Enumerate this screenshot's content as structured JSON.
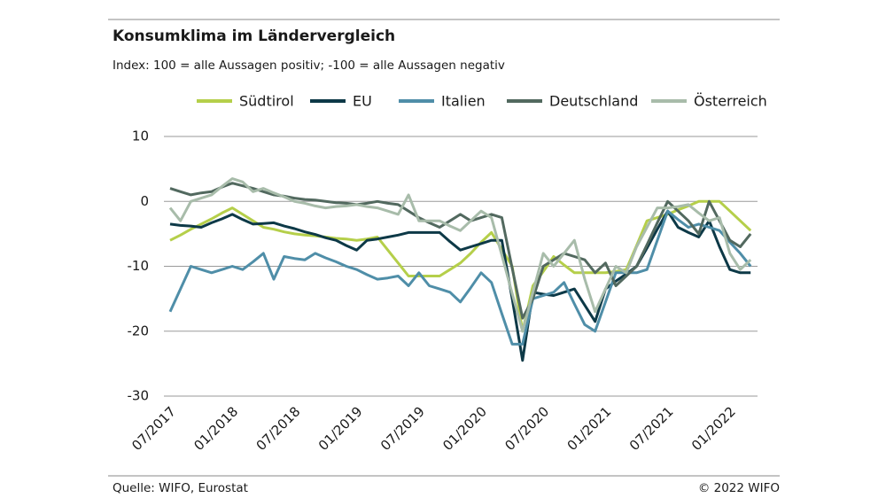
{
  "chart_data": {
    "type": "line",
    "title": "Konsumklima im Ländervergleich",
    "subtitle": "Index: 100 = alle Aussagen positiv; -100 =  alle Aussagen negativ",
    "source": "Quelle: WIFO, Eurostat",
    "copyright": "© 2022 WIFO",
    "categories": [
      "07/2017",
      null,
      null,
      null,
      null,
      null,
      "01/2018",
      null,
      null,
      null,
      null,
      null,
      "07/2018",
      null,
      null,
      null,
      null,
      null,
      "01/2019",
      null,
      null,
      null,
      null,
      null,
      "07/2019",
      null,
      null,
      null,
      null,
      null,
      "01/2020",
      null,
      null,
      null,
      null,
      null,
      "07/2020",
      null,
      null,
      null,
      null,
      null,
      "01/2021",
      null,
      null,
      null,
      null,
      null,
      "07/2021",
      null,
      null,
      null,
      null,
      null,
      "01/2022",
      null,
      null
    ],
    "ylim": [
      -30,
      10
    ],
    "yticks": [
      -30,
      -20,
      -10,
      0,
      10
    ],
    "grid": true,
    "series": [
      {
        "name": "Südtirol",
        "color": "#b5cf4a",
        "values": [
          -6,
          -5.2,
          -4.3,
          -3.5,
          -2.7,
          -1.8,
          -1,
          -2,
          -3,
          -4,
          -4.3,
          -4.7,
          -5,
          -5.2,
          -5.3,
          -5.5,
          -5.7,
          -5.8,
          -6,
          -5.8,
          -5.5,
          -7.5,
          -9.5,
          -11.5,
          -11.5,
          -11.5,
          -11.5,
          -10.5,
          -9.5,
          -8,
          -6.3,
          -4.8,
          -7.4,
          -10,
          -20,
          -13,
          -10.8,
          -8.5,
          -9.8,
          -11,
          -11,
          -11,
          -11,
          -10.8,
          -10.5,
          -6.8,
          -3,
          -2.5,
          -2,
          -1.3,
          -0.7,
          0,
          0,
          0,
          -1.5,
          -3,
          -4.5
        ]
      },
      {
        "name": "EU",
        "color": "#0d3947",
        "values": [
          -3.5,
          -3.7,
          -3.8,
          -4,
          -3.3,
          -2.7,
          -2,
          -2.8,
          -3.5,
          -3.4,
          -3.3,
          -3.8,
          -4.2,
          -4.7,
          -5.1,
          -5.6,
          -6,
          -6.8,
          -7.5,
          -6,
          -5.8,
          -5.5,
          -5.2,
          -4.8,
          -4.8,
          -4.8,
          -4.8,
          -6.2,
          -7.5,
          -7,
          -6.5,
          -6,
          -6,
          -15,
          -24.5,
          -14,
          -14.3,
          -14.5,
          -14,
          -13.5,
          -16,
          -18.5,
          -13.5,
          -12.3,
          -11.2,
          -10,
          -7.2,
          -4.3,
          -1.5,
          -4,
          -4.8,
          -5.5,
          -3,
          -7,
          -10.5,
          -11,
          -11
        ]
      },
      {
        "name": "Italien",
        "color": "#4f8ea8",
        "values": [
          -17,
          -13.5,
          -10,
          -10.5,
          -11,
          -10.5,
          -10,
          -10.5,
          -9.3,
          -8,
          -12,
          -8.5,
          -8.8,
          -9,
          -8,
          -8.7,
          -9.3,
          -10,
          -10.5,
          -11.3,
          -12,
          -11.8,
          -11.5,
          -13,
          -11,
          -13,
          -13.5,
          -14,
          -15.5,
          -13.3,
          -11,
          -12.5,
          -17.3,
          -22,
          -22,
          -15,
          -14.5,
          -14,
          -12.5,
          -15.8,
          -19,
          -20,
          -15.5,
          -11,
          -11,
          -11,
          -10.5,
          -6,
          -1.5,
          -2.8,
          -4,
          -3.5,
          -4,
          -4.5,
          -6.3,
          -8,
          -10
        ]
      },
      {
        "name": "Deutschland",
        "color": "#52695f",
        "values": [
          2,
          1.5,
          1,
          1.3,
          1.5,
          2.2,
          2.8,
          2.4,
          2,
          1.5,
          1,
          0.8,
          0.5,
          0.3,
          0.2,
          0,
          -0.2,
          -0.3,
          -0.5,
          -0.3,
          0,
          -0.3,
          -0.5,
          -1.5,
          -2.5,
          -3.3,
          -4,
          -3,
          -2,
          -3,
          -2.5,
          -2,
          -2.5,
          -10.3,
          -18,
          -15,
          -10,
          -9,
          -8,
          -8.5,
          -9,
          -11,
          -9.5,
          -13,
          -11.5,
          -10,
          -6.7,
          -3.3,
          0,
          -1.5,
          -3,
          -5,
          0,
          -3,
          -6,
          -7,
          -5
        ]
      },
      {
        "name": "Österreich",
        "color": "#a8bcaa",
        "values": [
          -1,
          -3,
          0,
          0.5,
          1,
          2.3,
          3.5,
          3,
          1.5,
          2,
          1.3,
          0.7,
          0,
          -0.3,
          -0.7,
          -1,
          -0.8,
          -0.7,
          -0.5,
          -0.8,
          -1,
          -1.5,
          -2,
          1,
          -3,
          -3,
          -3,
          -3.8,
          -4.5,
          -3,
          -1.5,
          -2.5,
          -8.3,
          -14.2,
          -20,
          -14,
          -8,
          -10,
          -8,
          -6,
          -12,
          -17,
          -13.5,
          -10,
          -11,
          -7,
          -4,
          -1,
          -1,
          -0.8,
          -0.5,
          -1.8,
          -3,
          -2.5,
          -8,
          -10.5,
          -9
        ]
      }
    ]
  }
}
